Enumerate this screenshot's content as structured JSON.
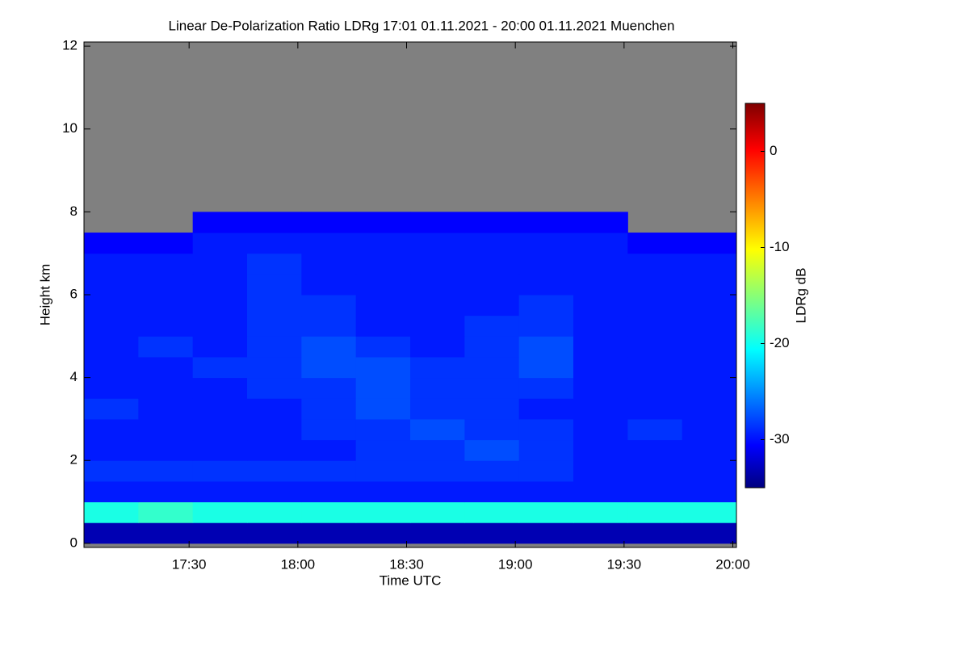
{
  "chart_data": {
    "type": "heatmap",
    "title": "Linear De-Polarization Ratio LDRg   17:01 01.11.2021 - 20:00 01.11.2021 Muenchen",
    "x_label": "Time UTC",
    "y_label": "Height km",
    "colorbar_label": "LDRg dB",
    "colormap": "jet",
    "missing_color": "#808080",
    "x_bins": [
      1021,
      1036,
      1051,
      1066,
      1081,
      1096,
      1111,
      1126,
      1141,
      1156,
      1171,
      1186,
      1201
    ],
    "y_bins": [
      0,
      0.5,
      1,
      1.5,
      2,
      2.5,
      3,
      3.5,
      4,
      4.5,
      5,
      5.5,
      6,
      6.5,
      7,
      7.5,
      8,
      8.5,
      9,
      9.5,
      10,
      10.5,
      11,
      11.5,
      12
    ],
    "z": [
      [
        -33,
        -33,
        -33,
        -33,
        -33,
        -33,
        -33,
        -33,
        -33,
        -33,
        -33,
        -33
      ],
      [
        -19,
        -18,
        -19,
        -19,
        -19,
        -19,
        -19,
        -19,
        -19,
        -19,
        -19,
        -19
      ],
      [
        -29,
        -29,
        -29,
        -29,
        -29,
        -29,
        -29,
        -29,
        -29,
        -29,
        -29,
        -29
      ],
      [
        -28,
        -28,
        -28,
        -28,
        -28,
        -28,
        -28,
        -28,
        -28,
        -29,
        -29,
        -29
      ],
      [
        -29,
        -29,
        -29,
        -29,
        -29,
        -28,
        -28,
        -27,
        -28,
        -29,
        -29,
        -29
      ],
      [
        -29,
        -29,
        -29,
        -29,
        -28,
        -28,
        -27,
        -28,
        -28,
        -29,
        -28,
        -29
      ],
      [
        -28,
        -29,
        -29,
        -29,
        -28,
        -27,
        -28,
        -28,
        -29,
        -29,
        -29,
        -29
      ],
      [
        -29,
        -29,
        -29,
        -28,
        -28,
        -27,
        -28,
        -28,
        -28,
        -29,
        -29,
        -29
      ],
      [
        -29,
        -29,
        -28,
        -28,
        -27,
        -27,
        -28,
        -28,
        -27,
        -29,
        -29,
        -29
      ],
      [
        -29,
        -28,
        -29,
        -28,
        -27,
        -28,
        -29,
        -28,
        -27,
        -29,
        -29,
        -29
      ],
      [
        -29,
        -29,
        -29,
        -28,
        -28,
        -29,
        -29,
        -28,
        -28,
        -29,
        -29,
        -29
      ],
      [
        -29,
        -29,
        -29,
        -28,
        -28,
        -29,
        -29,
        -29,
        -28,
        -29,
        -29,
        -29
      ],
      [
        -29,
        -29,
        -29,
        -28,
        -29,
        -29,
        -29,
        -29,
        -29,
        -29,
        -29,
        -29
      ],
      [
        -29,
        -29,
        -29,
        -28,
        -29,
        -29,
        -29,
        -29,
        -29,
        -29,
        -29,
        -29
      ],
      [
        -30,
        -30,
        -29,
        -29,
        -29,
        -29,
        -29,
        -29,
        -29,
        -29,
        -30,
        -30
      ],
      [
        null,
        null,
        -30,
        -30,
        -30,
        -30,
        -30,
        -30,
        -30,
        -30,
        null,
        null
      ],
      [
        null,
        null,
        null,
        null,
        null,
        null,
        null,
        null,
        null,
        null,
        null,
        null
      ],
      [
        null,
        null,
        null,
        null,
        null,
        null,
        null,
        null,
        null,
        null,
        null,
        null
      ],
      [
        null,
        null,
        null,
        null,
        null,
        null,
        null,
        null,
        null,
        null,
        null,
        null
      ],
      [
        null,
        null,
        null,
        null,
        null,
        null,
        null,
        null,
        null,
        null,
        null,
        null
      ],
      [
        null,
        null,
        null,
        null,
        null,
        null,
        null,
        null,
        null,
        null,
        null,
        null
      ],
      [
        null,
        null,
        null,
        null,
        null,
        null,
        null,
        null,
        null,
        null,
        null,
        null
      ],
      [
        null,
        null,
        null,
        null,
        null,
        null,
        null,
        null,
        null,
        null,
        null,
        null
      ],
      [
        null,
        null,
        null,
        null,
        null,
        null,
        null,
        null,
        null,
        null,
        null,
        null
      ]
    ],
    "xlim": [
      1021,
      1201
    ],
    "xticks": [
      {
        "value": 1050,
        "label": "17:30"
      },
      {
        "value": 1080,
        "label": "18:00"
      },
      {
        "value": 1110,
        "label": "18:30"
      },
      {
        "value": 1140,
        "label": "19:00"
      },
      {
        "value": 1170,
        "label": "19:30"
      },
      {
        "value": 1200,
        "label": "20:00"
      }
    ],
    "ylim": [
      -0.1,
      12.1
    ],
    "yticks": [
      0,
      2,
      4,
      6,
      8,
      10,
      12
    ],
    "zlim": [
      -35,
      5
    ],
    "zticks": [
      -30,
      -20,
      -10,
      0
    ]
  }
}
